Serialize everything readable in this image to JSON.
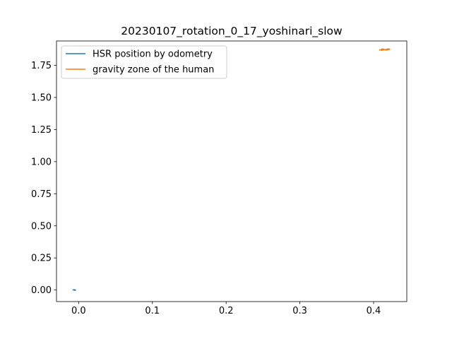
{
  "chart_data": {
    "type": "line",
    "title": "20230107_rotation_0_17_yoshinari_slow",
    "xlabel": "",
    "ylabel": "",
    "xlim": [
      -0.03,
      0.445
    ],
    "ylim": [
      -0.09,
      1.94
    ],
    "xticks": [
      0.0,
      0.1,
      0.2,
      0.3,
      0.4
    ],
    "xtick_labels": [
      "0.0",
      "0.1",
      "0.2",
      "0.3",
      "0.4"
    ],
    "yticks": [
      0.0,
      0.25,
      0.5,
      0.75,
      1.0,
      1.25,
      1.5,
      1.75
    ],
    "ytick_labels": [
      "0.00",
      "0.25",
      "0.50",
      "0.75",
      "1.00",
      "1.25",
      "1.50",
      "1.75"
    ],
    "grid": false,
    "legend_position": "top-left",
    "series": [
      {
        "name": "HSR position by odometry",
        "color": "#1f77b4",
        "x": [
          -0.0075,
          -0.0065,
          -0.0055,
          -0.0045,
          -0.004,
          -0.005,
          -0.006,
          -0.007,
          -0.0062,
          -0.0048
        ],
        "y": [
          0.001,
          0.002,
          0.0015,
          0.0005,
          -0.0005,
          -0.001,
          -0.0005,
          0.0005,
          0.0012,
          0.0002
        ]
      },
      {
        "name": "gravity zone of the human",
        "color": "#ff7f0e",
        "x": [
          0.408,
          0.41,
          0.412,
          0.414,
          0.416,
          0.418,
          0.42,
          0.422,
          0.42,
          0.416,
          0.412,
          0.409,
          0.411,
          0.415,
          0.419,
          0.421,
          0.417,
          0.413,
          0.41
        ],
        "y": [
          1.868,
          1.874,
          1.87,
          1.876,
          1.871,
          1.877,
          1.873,
          1.875,
          1.879,
          1.872,
          1.878,
          1.871,
          1.867,
          1.873,
          1.87,
          1.876,
          1.869,
          1.875,
          1.872
        ]
      }
    ]
  }
}
